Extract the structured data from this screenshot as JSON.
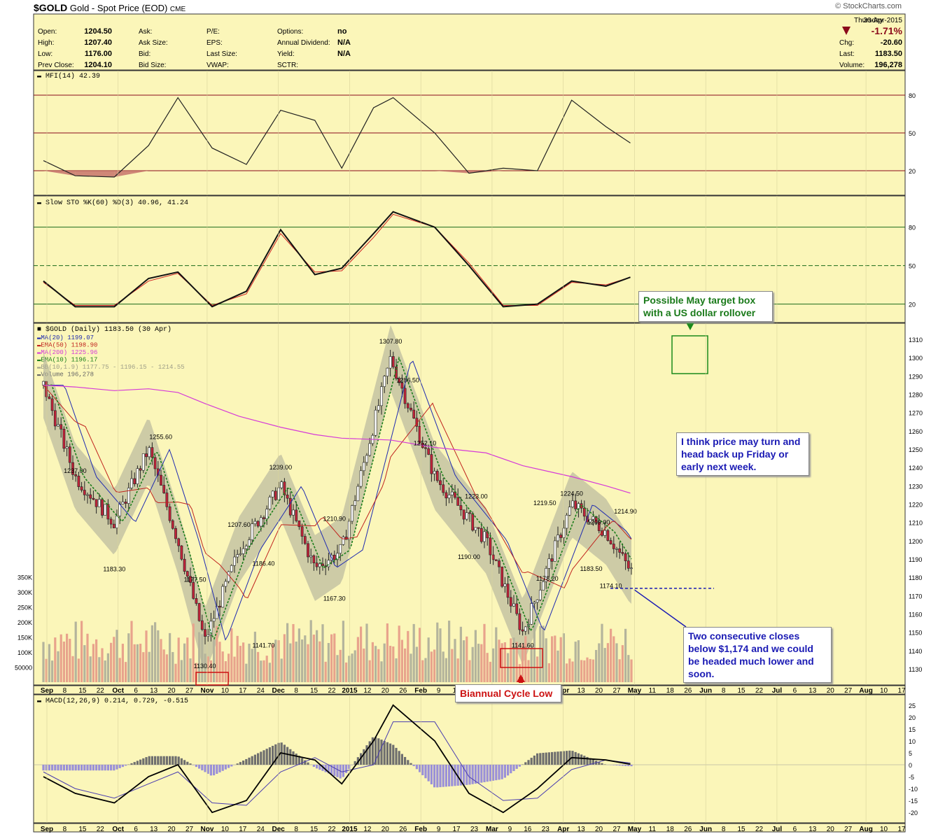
{
  "header": {
    "symbol": "$GOLD",
    "desc": "Gold - Spot Price (EOD)",
    "exchange": "CME",
    "watermark": "© StockCharts.com",
    "day": "Thursday",
    "date": "30-Apr-2015",
    "pct_change": "-1.71%",
    "quote": [
      {
        "label": "Open:",
        "value": "1204.50"
      },
      {
        "label": "High:",
        "value": "1207.40"
      },
      {
        "label": "Low:",
        "value": "1176.00"
      },
      {
        "label": "Prev Close:",
        "value": "1204.10"
      }
    ],
    "quote2": [
      "Ask:",
      "Ask Size:",
      "Bid:",
      "Bid Size:"
    ],
    "quote3": [
      "P/E:",
      "EPS:",
      "Last Size:",
      "VWAP:"
    ],
    "quote4": [
      {
        "label": "Options:",
        "value": "no"
      },
      {
        "label": "Annual Dividend:",
        "value": "N/A"
      },
      {
        "label": "Yield:",
        "value": "N/A"
      },
      {
        "label": "SCTR:",
        "value": ""
      }
    ],
    "right": [
      {
        "label": "Chg:",
        "value": "-20.60"
      },
      {
        "label": "Last:",
        "value": "1183.50"
      },
      {
        "label": "Volume:",
        "value": "196,278"
      }
    ]
  },
  "colors": {
    "panel_bg": "#fbf6b9",
    "up": "#1a1a1a",
    "down": "#c0243a",
    "ma20": "#1f2bb0",
    "ema50": "#c0241e",
    "ma200": "#d63ad8",
    "ema10": "#1a7d1a",
    "bb": "#9e9e88",
    "annotation_green": "#1a7a1a",
    "annotation_blue": "#1a1ab4",
    "annotation_red": "#cc1111"
  },
  "chart_data": [
    {
      "type": "line",
      "title": "MFI(14) 42.39",
      "yticks": [
        20,
        50,
        80
      ],
      "ylim": [
        5,
        95
      ],
      "x": [
        "2014-09-02",
        "2014-09-15",
        "2014-10-01",
        "2014-10-15",
        "2014-10-27",
        "2014-11-10",
        "2014-11-24",
        "2014-12-08",
        "2014-12-22",
        "2015-01-02",
        "2015-01-15",
        "2015-01-23",
        "2015-02-09",
        "2015-02-23",
        "2015-03-09",
        "2015-03-23",
        "2015-04-06",
        "2015-04-20",
        "2015-04-30"
      ],
      "series": [
        {
          "name": "MFI(14)",
          "values": [
            28,
            16,
            15,
            40,
            78,
            38,
            25,
            68,
            60,
            22,
            70,
            78,
            50,
            18,
            22,
            20,
            76,
            55,
            42
          ]
        }
      ]
    },
    {
      "type": "line",
      "title": "Slow STO %K(60) %D(3) 40.96, 41.24",
      "yticks": [
        20,
        50,
        80
      ],
      "ylim": [
        10,
        100
      ],
      "x": [
        "2014-09-02",
        "2014-09-15",
        "2014-10-01",
        "2014-10-15",
        "2014-10-27",
        "2014-11-10",
        "2014-11-24",
        "2014-12-08",
        "2014-12-22",
        "2015-01-02",
        "2015-01-15",
        "2015-01-23",
        "2015-02-09",
        "2015-02-23",
        "2015-03-09",
        "2015-03-23",
        "2015-04-06",
        "2015-04-20",
        "2015-04-30"
      ],
      "series": [
        {
          "name": "%K(60)",
          "values": [
            38,
            18,
            18,
            40,
            45,
            18,
            30,
            78,
            43,
            48,
            75,
            92,
            80,
            50,
            18,
            20,
            38,
            34,
            41
          ]
        },
        {
          "name": "%D(3)",
          "values": [
            37,
            19,
            19,
            38,
            44,
            19,
            28,
            75,
            45,
            46,
            72,
            90,
            80,
            52,
            19,
            19,
            37,
            35,
            41
          ]
        }
      ]
    },
    {
      "type": "candlestick",
      "title": "$GOLD (Daily) 1183.50 (30 Apr)",
      "legend": [
        "MA(20) 1199.07",
        "EMA(50) 1198.90",
        "MA(200) 1225.96",
        "EMA(10) 1196.17",
        "BB(10,1.9) 1177.75 - 1196.15 - 1214.55",
        "Volume 196,278"
      ],
      "ylim": [
        1125,
        1315
      ],
      "yticks": [
        1130,
        1140,
        1150,
        1160,
        1170,
        1180,
        1190,
        1200,
        1210,
        1220,
        1230,
        1240,
        1250,
        1260,
        1270,
        1280,
        1290,
        1300,
        1310
      ],
      "volume_ticks": [
        {
          "label": "350K",
          "value": 350000
        },
        {
          "label": "300K",
          "value": 300000
        },
        {
          "label": "250K",
          "value": 250000
        },
        {
          "label": "200K",
          "value": 200000
        },
        {
          "label": "150K",
          "value": 150000
        },
        {
          "label": "100K",
          "value": 100000
        },
        {
          "label": "50000",
          "value": 50000
        }
      ],
      "x": [
        "2014-09-02",
        "2014-09-15",
        "2014-10-01",
        "2014-10-15",
        "2014-10-27",
        "2014-11-07",
        "2014-11-21",
        "2014-12-08",
        "2014-12-22",
        "2015-01-02",
        "2015-01-22",
        "2015-02-09",
        "2015-03-02",
        "2015-03-17",
        "2015-04-06",
        "2015-04-20",
        "2015-04-30"
      ],
      "close": [
        1285,
        1235,
        1210,
        1250,
        1200,
        1145,
        1195,
        1230,
        1185,
        1195,
        1300,
        1235,
        1200,
        1150,
        1220,
        1205,
        1183.5
      ],
      "ma200": [
        1285,
        1284,
        1282,
        1283,
        1281,
        1275,
        1268,
        1262,
        1258,
        1256,
        1255,
        1251,
        1248,
        1241,
        1235,
        1230,
        1226
      ],
      "price_labels": [
        {
          "text": "1237.00",
          "date": "2014-09-15",
          "value": 1237
        },
        {
          "text": "1183.30",
          "date": "2014-10-01",
          "value": 1183.3
        },
        {
          "text": "1255.60",
          "date": "2014-10-20",
          "value": 1255.6
        },
        {
          "text": "1177.50",
          "date": "2014-11-03",
          "value": 1177.5
        },
        {
          "text": "1130.40",
          "date": "2014-11-07",
          "value": 1130.4
        },
        {
          "text": "1207.60",
          "date": "2014-11-21",
          "value": 1207.6
        },
        {
          "text": "1186.40",
          "date": "2014-12-01",
          "value": 1186.4
        },
        {
          "text": "1141.70",
          "date": "2014-12-01",
          "value": 1141.7
        },
        {
          "text": "1239.00",
          "date": "2014-12-08",
          "value": 1239
        },
        {
          "text": "1210.90",
          "date": "2014-12-30",
          "value": 1210.9
        },
        {
          "text": "1167.30",
          "date": "2014-12-30",
          "value": 1167.3
        },
        {
          "text": "1307.80",
          "date": "2015-01-22",
          "value": 1307.8
        },
        {
          "text": "1286.50",
          "date": "2015-01-29",
          "value": 1286.5
        },
        {
          "text": "1252.10",
          "date": "2015-02-05",
          "value": 1252.1
        },
        {
          "text": "1223.00",
          "date": "2015-02-26",
          "value": 1223
        },
        {
          "text": "1190.00",
          "date": "2015-02-23",
          "value": 1190
        },
        {
          "text": "1141.60",
          "date": "2015-03-17",
          "value": 1141.6
        },
        {
          "text": "1219.50",
          "date": "2015-03-26",
          "value": 1219.5
        },
        {
          "text": "1178.20",
          "date": "2015-03-27",
          "value": 1178.2
        },
        {
          "text": "1224.50",
          "date": "2015-04-06",
          "value": 1224.5
        },
        {
          "text": "1183.50",
          "date": "2015-04-14",
          "value": 1183.5
        },
        {
          "text": "1209.00",
          "date": "2015-04-17",
          "value": 1209
        },
        {
          "text": "1214.90",
          "date": "2015-04-28",
          "value": 1214.9
        },
        {
          "text": "1174.10",
          "date": "2015-04-22",
          "value": 1174.1
        }
      ],
      "annotations": {
        "target_box": "Possible May target box with a US dollar rollover",
        "price_turn": "I think price may turn and head back up Friday or early next week.",
        "closes_below": "Two consecutive closes below $1,174 and we could be headed much lower and soon.",
        "cycle_low": "Biannual Cycle Low"
      }
    },
    {
      "type": "line",
      "title": "MACD(12,26,9) 0.214, 0.729, -0.515",
      "ylim": [
        -22,
        27
      ],
      "yticks": [
        -20,
        -15,
        -10,
        -5,
        0,
        5,
        10,
        15,
        20,
        25
      ],
      "x": [
        "2014-09-02",
        "2014-09-15",
        "2014-10-01",
        "2014-10-15",
        "2014-10-27",
        "2014-11-10",
        "2014-11-24",
        "2014-12-08",
        "2014-12-22",
        "2015-01-02",
        "2015-01-15",
        "2015-01-23",
        "2015-02-09",
        "2015-02-23",
        "2015-03-09",
        "2015-03-23",
        "2015-04-06",
        "2015-04-20",
        "2015-04-30"
      ],
      "series": [
        {
          "name": "MACD",
          "values": [
            -5,
            -12,
            -16,
            -5,
            0,
            -20,
            -15,
            5,
            2,
            -8,
            10,
            25,
            10,
            -12,
            -20,
            -10,
            3,
            2,
            0.214
          ]
        },
        {
          "name": "Signal",
          "values": [
            -3,
            -10,
            -14,
            -8,
            -3,
            -16,
            -17,
            -3,
            3,
            -3,
            0,
            18,
            18,
            -5,
            -15,
            -14,
            -2,
            2,
            0.729
          ]
        }
      ]
    }
  ],
  "x_axis": [
    "Sep",
    "8",
    "15",
    "22",
    "Oct",
    "6",
    "13",
    "20",
    "27",
    "Nov",
    "10",
    "17",
    "24",
    "Dec",
    "8",
    "15",
    "22",
    "2015",
    "12",
    "20",
    "26",
    "Feb",
    "9",
    "17",
    "23",
    "Mar",
    "9",
    "16",
    "23",
    "Apr",
    "13",
    "20",
    "27",
    "May",
    "11",
    "18",
    "26",
    "Jun",
    "8",
    "15",
    "22",
    "Jul",
    "6",
    "13",
    "20",
    "27",
    "Aug",
    "10",
    "17"
  ]
}
